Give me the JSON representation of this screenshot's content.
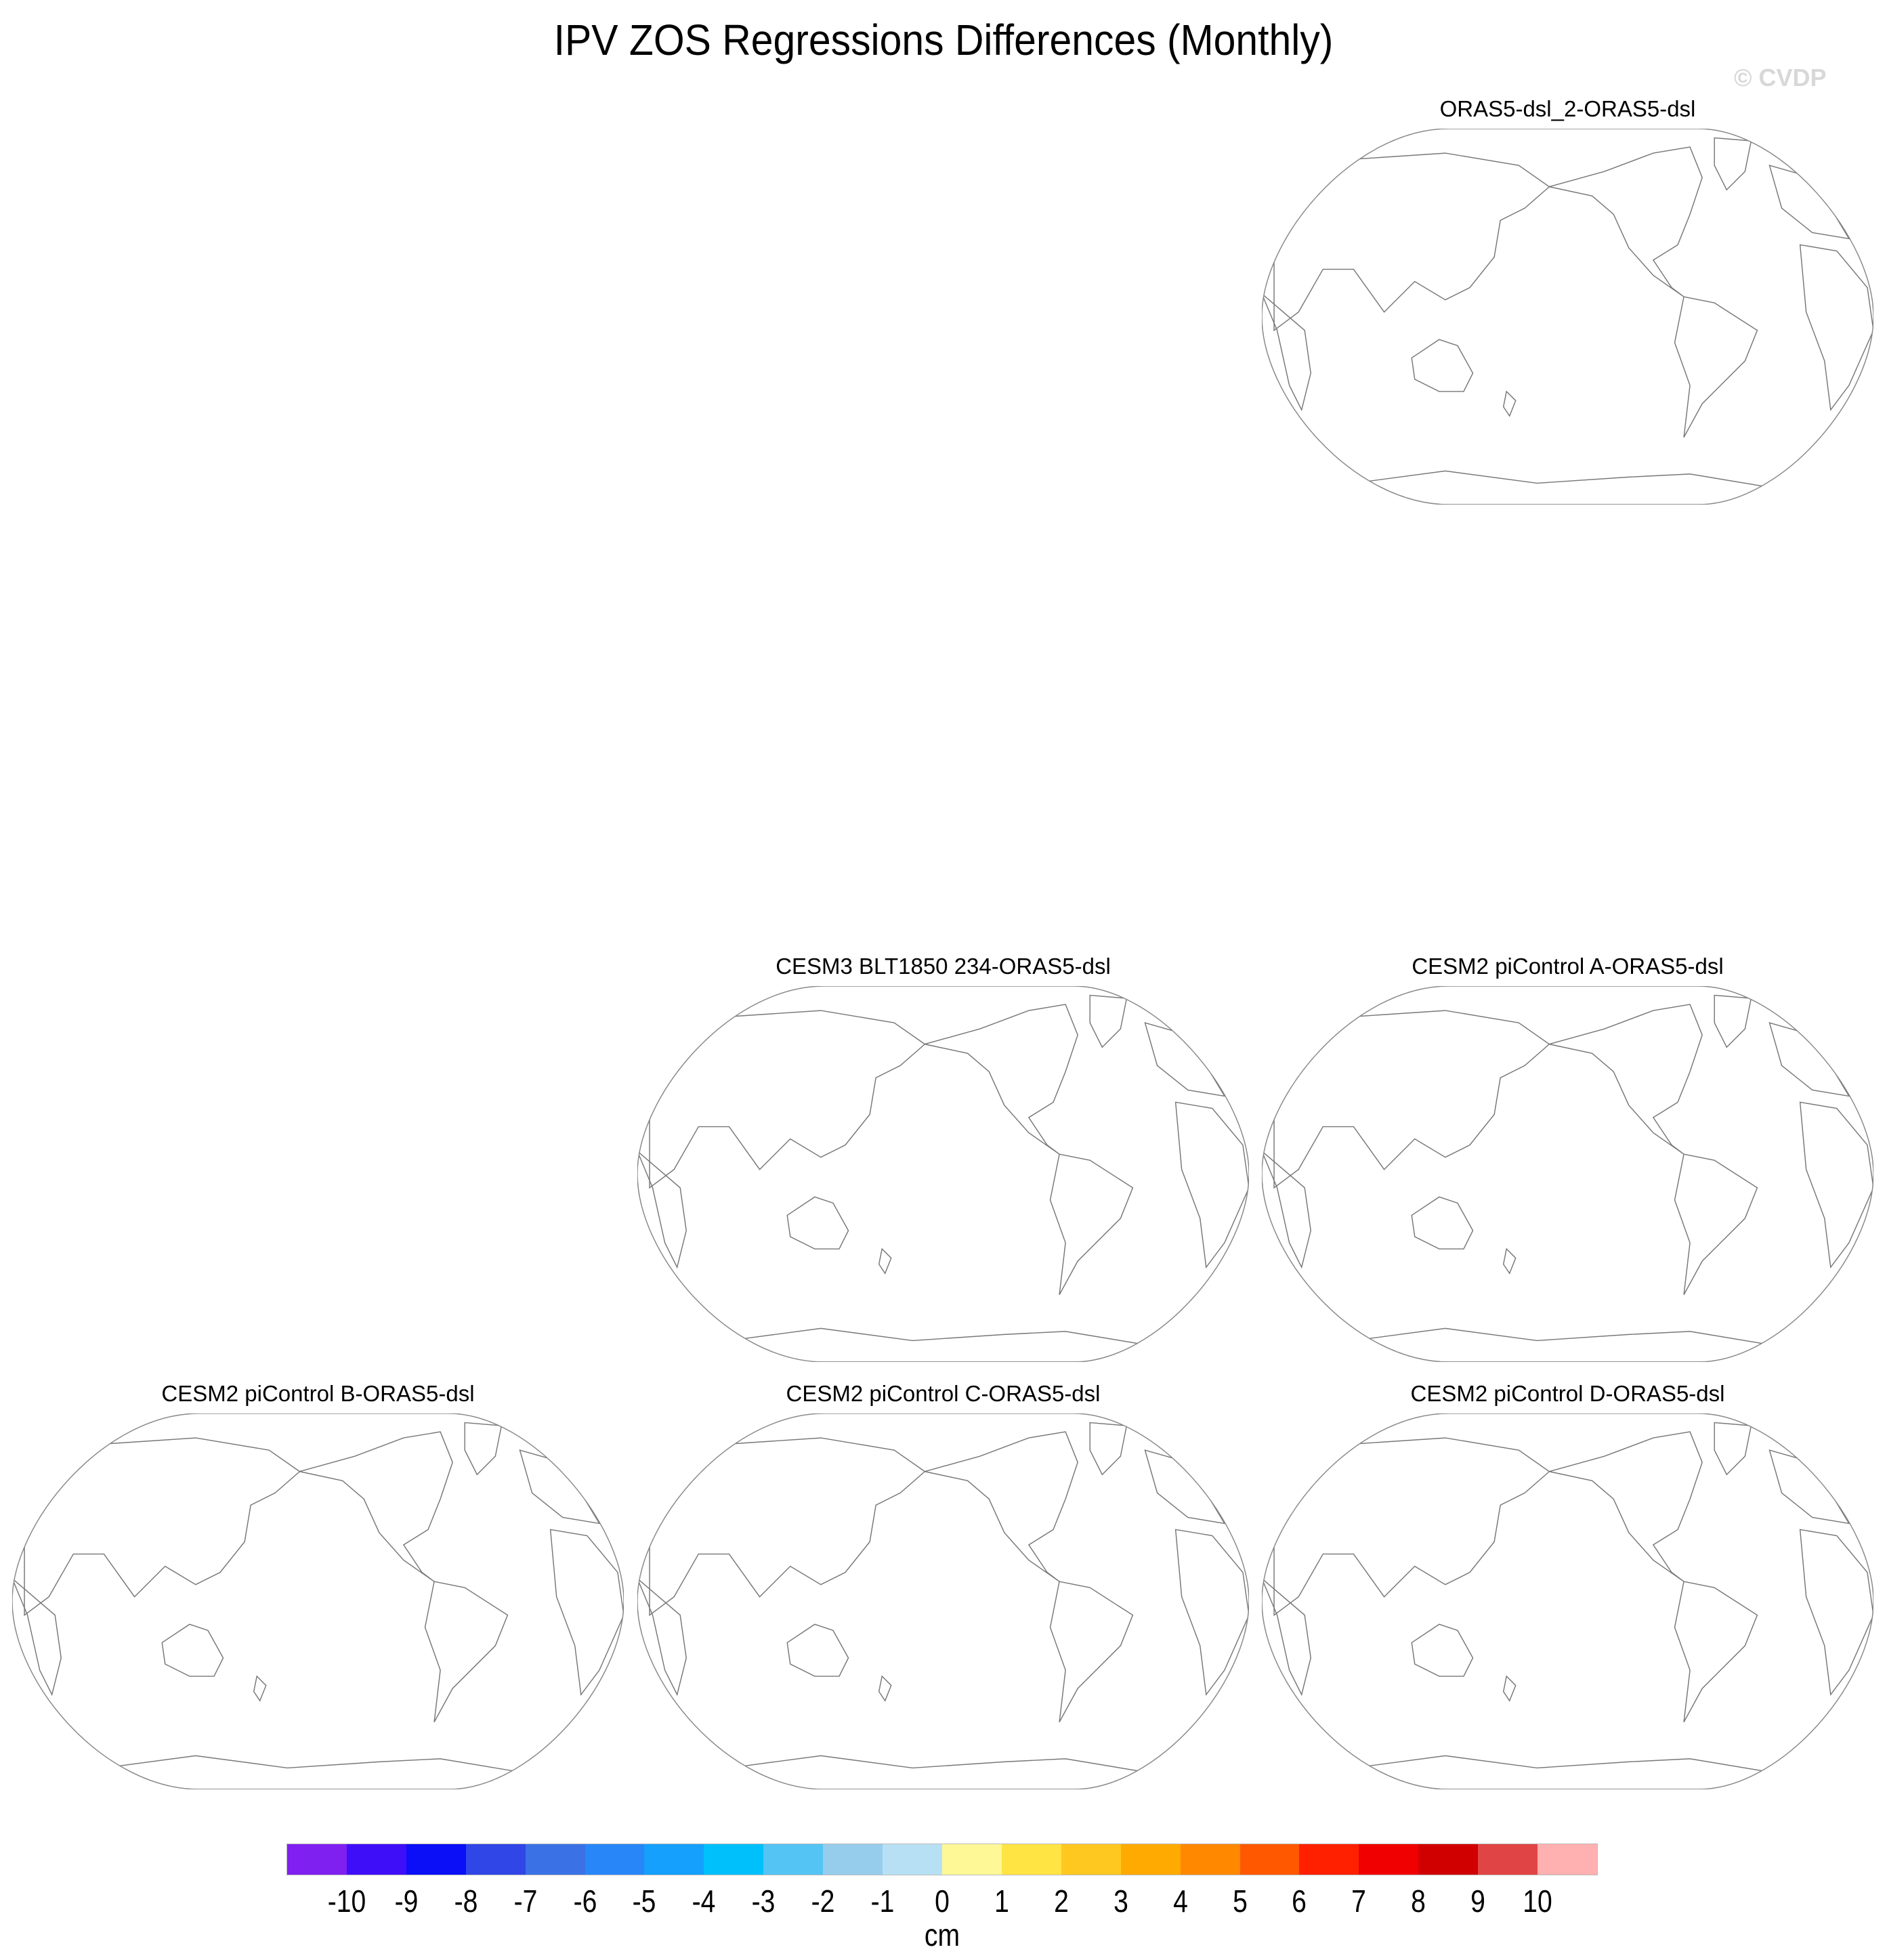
{
  "title": "IPV ZOS Regressions Differences (Monthly)",
  "watermark": "© CVDP",
  "chart_data": {
    "type": "map",
    "projection": "Robinson, Pacific-centered",
    "panels": [
      {
        "title": "ORAS5-dsl_2-ORAS5-dsl",
        "row": 1,
        "col": 3
      },
      {
        "title": "CESM3 BLT1850 234-ORAS5-dsl",
        "row": 3,
        "col": 2
      },
      {
        "title": "CESM2 piControl A-ORAS5-dsl",
        "row": 3,
        "col": 3
      },
      {
        "title": "CESM2 piControl B-ORAS5-dsl",
        "row": 4,
        "col": 1
      },
      {
        "title": "CESM2 piControl C-ORAS5-dsl",
        "row": 4,
        "col": 2
      },
      {
        "title": "CESM2 piControl D-ORAS5-dsl",
        "row": 4,
        "col": 3
      }
    ],
    "colorbar": {
      "units": "cm",
      "tick_labels": [
        "-10",
        "-9",
        "-8",
        "-7",
        "-6",
        "-5",
        "-4",
        "-3",
        "-2",
        "-1",
        "0",
        "1",
        "2",
        "3",
        "4",
        "5",
        "6",
        "7",
        "8",
        "9",
        "10"
      ],
      "colors": [
        "#7f1ff0",
        "#3f0ef8",
        "#0a0ff8",
        "#3046e6",
        "#3a72e6",
        "#2886f8",
        "#14a0fc",
        "#00c0fc",
        "#54c4f4",
        "#96cdec",
        "#b8e0f4",
        "#fff896",
        "#ffe444",
        "#ffc820",
        "#ffaa00",
        "#ff8800",
        "#ff5800",
        "#ff2000",
        "#f00000",
        "#d00000",
        "#e04444",
        "#ffb0b0"
      ]
    },
    "fill": "none (outlines only)"
  }
}
